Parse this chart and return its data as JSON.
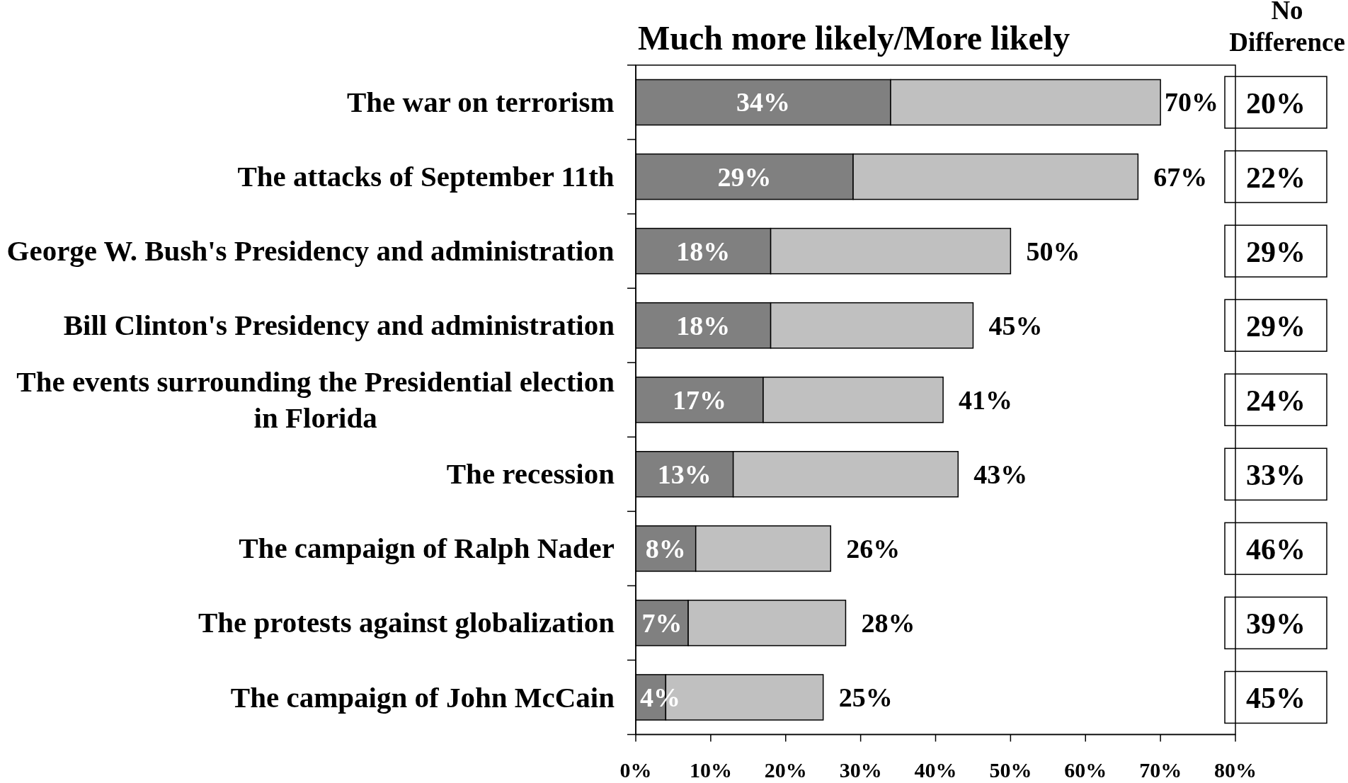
{
  "chart_data": [
    {
      "type": "bar",
      "orientation": "horizontal",
      "stacked": true,
      "title": "Much more likely/More likely",
      "categories": [
        "The war on terrorism",
        "The attacks of September 11th",
        "George W. Bush's Presidency and administration",
        "Bill Clinton's Presidency and administration",
        "The events surrounding the Presidential election in Florida",
        "The recession",
        "The campaign of Ralph Nader",
        "The protests against globalization",
        "The campaign of John McCain"
      ],
      "series": [
        {
          "color": "#808080",
          "values": [
            34,
            29,
            18,
            18,
            17,
            13,
            8,
            7,
            4
          ],
          "value_labels": [
            "34%",
            "29%",
            "18%",
            "18%",
            "17%",
            "13%",
            "8%",
            "7%",
            "4%"
          ]
        },
        {
          "color": "#c0c0c0",
          "values": [
            36,
            38,
            32,
            27,
            24,
            30,
            18,
            21,
            21
          ]
        }
      ],
      "totals": [
        "70%",
        "67%",
        "50%",
        "45%",
        "41%",
        "43%",
        "26%",
        "28%",
        "25%"
      ],
      "xlim": [
        0,
        80
      ],
      "xticks": [
        {
          "value": 0,
          "label": "0%"
        },
        {
          "value": 10,
          "label": "10%"
        },
        {
          "value": 20,
          "label": "20%"
        },
        {
          "value": 30,
          "label": "30%"
        },
        {
          "value": 40,
          "label": "40%"
        },
        {
          "value": 50,
          "label": "50%"
        },
        {
          "value": 60,
          "label": "60%"
        },
        {
          "value": 70,
          "label": "70%"
        },
        {
          "value": 80,
          "label": "80%"
        }
      ]
    },
    {
      "type": "other",
      "title": "No Difference",
      "values": [
        20,
        22,
        29,
        29,
        24,
        33,
        46,
        39,
        45
      ],
      "value_labels": [
        "20%",
        "22%",
        "29%",
        "29%",
        "24%",
        "33%",
        "46%",
        "39%",
        "45%"
      ]
    }
  ]
}
